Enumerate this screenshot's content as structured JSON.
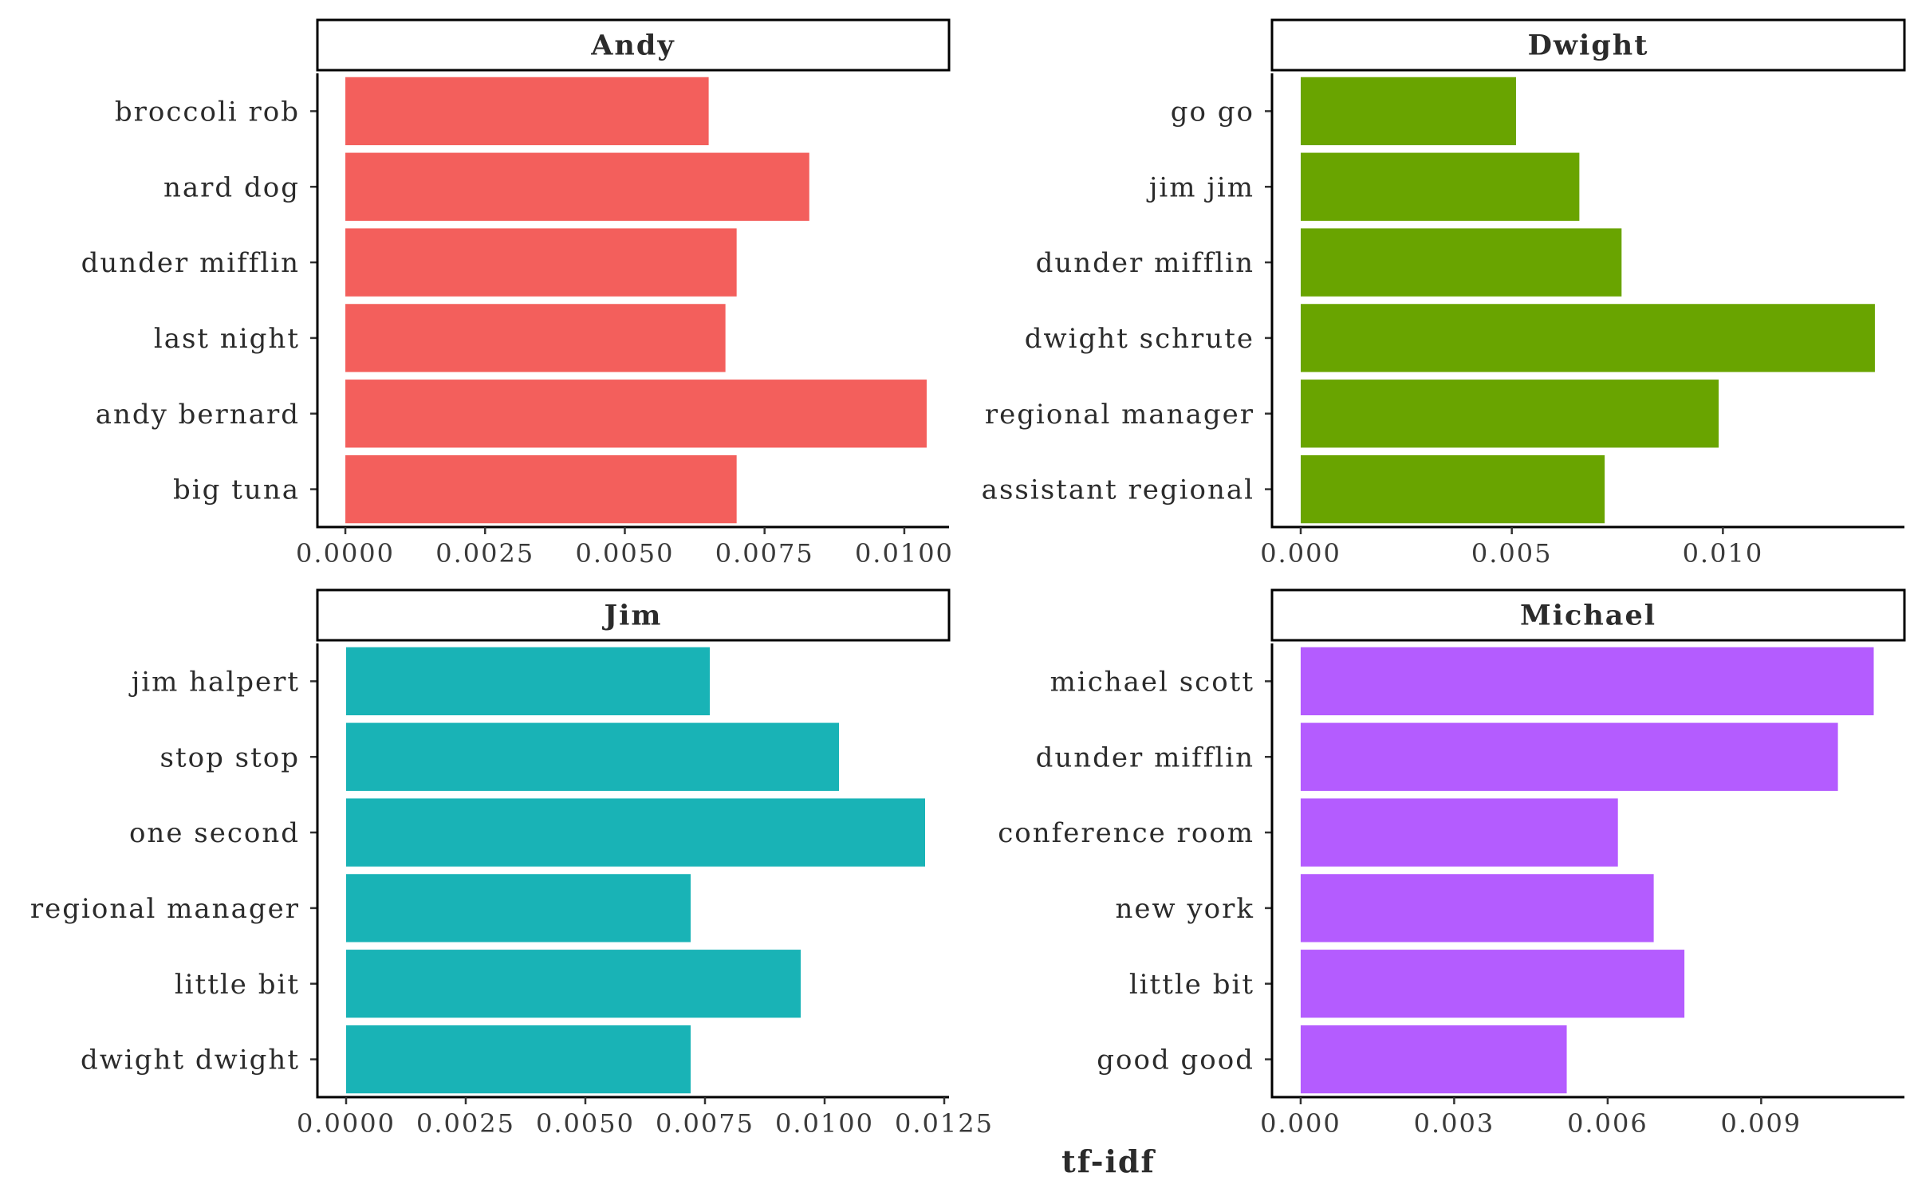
{
  "chart_data": [
    {
      "type": "bar",
      "orientation": "horizontal",
      "panel": "Andy",
      "color": "#F35F5C",
      "categories": [
        "broccoli rob",
        "nard dog",
        "dunder mifflin",
        "last night",
        "andy bernard",
        "big tuna"
      ],
      "values": [
        0.0065,
        0.0083,
        0.007,
        0.0068,
        0.0104,
        0.007
      ],
      "xlim": [
        -0.0005,
        0.0108
      ],
      "xticks": [
        0,
        0.0025,
        0.005,
        0.0075,
        0.01
      ],
      "xtick_labels": [
        "0.0000",
        "0.0025",
        "0.0050",
        "0.0075",
        "0.0100"
      ]
    },
    {
      "type": "bar",
      "orientation": "horizontal",
      "panel": "Dwight",
      "color": "#69A400",
      "categories": [
        "go go",
        "jim jim",
        "dunder mifflin",
        "dwight schrute",
        "regional manager",
        "assistant regional"
      ],
      "values": [
        0.0051,
        0.0066,
        0.0076,
        0.0136,
        0.0099,
        0.0072
      ],
      "xlim": [
        -0.00068,
        0.0143
      ],
      "xticks": [
        0,
        0.005,
        0.01
      ],
      "xtick_labels": [
        "0.000",
        "0.005",
        "0.010"
      ]
    },
    {
      "type": "bar",
      "orientation": "horizontal",
      "panel": "Jim",
      "color": "#19B3B6",
      "categories": [
        "jim halpert",
        "stop stop",
        "one second",
        "regional manager",
        "little bit",
        "dwight dwight"
      ],
      "values": [
        0.0076,
        0.0103,
        0.0121,
        0.0072,
        0.0095,
        0.0072
      ],
      "xlim": [
        -0.0006,
        0.0126
      ],
      "xticks": [
        0,
        0.0025,
        0.005,
        0.0075,
        0.01,
        0.0125
      ],
      "xtick_labels": [
        "0.0000",
        "0.0025",
        "0.0050",
        "0.0075",
        "0.0100",
        "0.0125"
      ]
    },
    {
      "type": "bar",
      "orientation": "horizontal",
      "panel": "Michael",
      "color": "#B45CFF",
      "categories": [
        "michael scott",
        "dunder mifflin",
        "conference room",
        "new york",
        "little bit",
        "good good"
      ],
      "values": [
        0.0112,
        0.0105,
        0.0062,
        0.0069,
        0.0075,
        0.0052
      ],
      "xlim": [
        -0.00056,
        0.0118
      ],
      "xticks": [
        0,
        0.003,
        0.006,
        0.009
      ],
      "xtick_labels": [
        "0.000",
        "0.003",
        "0.006",
        "0.009"
      ]
    }
  ],
  "shared": {
    "xlabel": "tf-idf",
    "facet_strip_fill": "#FFFFFF",
    "grid": false
  }
}
